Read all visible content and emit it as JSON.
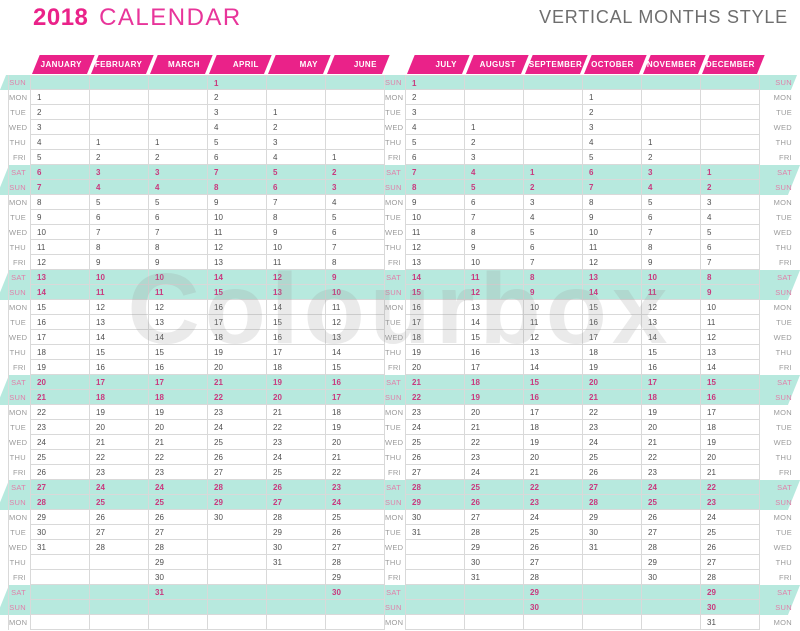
{
  "header": {
    "year": "2018",
    "title": "CALENDAR",
    "subtitle": "VERTICAL MONTHS STYLE"
  },
  "watermark_text": "Colourbox",
  "colors": {
    "accent_pink": "#EA2289",
    "weekend_highlight": "#B7E9DE",
    "weekend_number": "#C9397E",
    "weekend_label": "#E07FA9",
    "grid_line": "#D9D9D9",
    "number_text": "#4E4E4E",
    "label_text": "#9B9B9B",
    "subtitle_text": "#6E6E6E"
  },
  "calendar": {
    "row_labels": [
      "SUN",
      "MON",
      "TUE",
      "WED",
      "THU",
      "FRI",
      "SAT",
      "SUN",
      "MON",
      "TUE",
      "WED",
      "THU",
      "FRI",
      "SAT",
      "SUN",
      "MON",
      "TUE",
      "WED",
      "THU",
      "FRI",
      "SAT",
      "SUN",
      "MON",
      "TUE",
      "WED",
      "THU",
      "FRI",
      "SAT",
      "SUN",
      "MON",
      "TUE",
      "WED",
      "THU",
      "FRI",
      "SAT",
      "SUN",
      "MON"
    ],
    "weekend_rows": [
      1,
      7,
      8,
      14,
      15,
      21,
      22,
      28,
      29,
      35,
      36
    ],
    "bands": [
      [
        1,
        1
      ],
      [
        7,
        2
      ],
      [
        14,
        2
      ],
      [
        21,
        2
      ],
      [
        28,
        2
      ],
      [
        35,
        2
      ]
    ],
    "months": [
      {
        "name": "JANUARY",
        "cells": [
          "",
          1,
          2,
          3,
          4,
          5,
          6,
          7,
          8,
          9,
          10,
          11,
          12,
          13,
          14,
          15,
          16,
          17,
          18,
          19,
          20,
          21,
          22,
          23,
          24,
          25,
          26,
          27,
          28,
          29,
          30,
          31,
          "",
          "",
          "",
          "",
          ""
        ]
      },
      {
        "name": "FEBRUARY",
        "cells": [
          "",
          "",
          "",
          "",
          1,
          2,
          3,
          4,
          5,
          6,
          7,
          8,
          9,
          10,
          11,
          12,
          13,
          14,
          15,
          16,
          17,
          18,
          19,
          20,
          21,
          22,
          23,
          24,
          25,
          26,
          27,
          28,
          "",
          "",
          "",
          "",
          ""
        ]
      },
      {
        "name": "MARCH",
        "cells": [
          "",
          "",
          "",
          "",
          1,
          2,
          3,
          4,
          5,
          6,
          7,
          8,
          9,
          10,
          11,
          12,
          13,
          14,
          15,
          16,
          17,
          18,
          19,
          20,
          21,
          22,
          23,
          24,
          25,
          26,
          27,
          28,
          29,
          30,
          31,
          "",
          ""
        ]
      },
      {
        "name": "APRIL",
        "cells": [
          1,
          2,
          3,
          4,
          5,
          6,
          7,
          8,
          9,
          10,
          11,
          12,
          13,
          14,
          15,
          16,
          17,
          18,
          19,
          20,
          21,
          22,
          23,
          24,
          25,
          26,
          27,
          28,
          29,
          30,
          "",
          "",
          "",
          "",
          "",
          "",
          ""
        ]
      },
      {
        "name": "MAY",
        "cells": [
          "",
          "",
          1,
          2,
          3,
          4,
          5,
          6,
          7,
          8,
          9,
          10,
          11,
          12,
          13,
          14,
          15,
          16,
          17,
          18,
          19,
          20,
          21,
          22,
          23,
          24,
          25,
          26,
          27,
          28,
          29,
          30,
          31,
          "",
          "",
          "",
          ""
        ]
      },
      {
        "name": "JUNE",
        "cells": [
          "",
          "",
          "",
          "",
          "",
          1,
          2,
          3,
          4,
          5,
          6,
          7,
          8,
          9,
          10,
          11,
          12,
          13,
          14,
          15,
          16,
          17,
          18,
          19,
          20,
          21,
          22,
          23,
          24,
          25,
          26,
          27,
          28,
          29,
          30,
          "",
          ""
        ]
      },
      {
        "name": "JULY",
        "cells": [
          1,
          2,
          3,
          4,
          5,
          6,
          7,
          8,
          9,
          10,
          11,
          12,
          13,
          14,
          15,
          16,
          17,
          18,
          19,
          20,
          21,
          22,
          23,
          24,
          25,
          26,
          27,
          28,
          29,
          30,
          31,
          "",
          "",
          "",
          "",
          "",
          ""
        ]
      },
      {
        "name": "AUGUST",
        "cells": [
          "",
          "",
          "",
          1,
          2,
          3,
          4,
          5,
          6,
          7,
          8,
          9,
          10,
          11,
          12,
          13,
          14,
          15,
          16,
          17,
          18,
          19,
          20,
          21,
          22,
          23,
          24,
          25,
          26,
          27,
          28,
          29,
          30,
          31,
          "",
          "",
          ""
        ]
      },
      {
        "name": "SEPTEMBER",
        "cells": [
          "",
          "",
          "",
          "",
          "",
          "",
          1,
          2,
          3,
          4,
          5,
          6,
          7,
          8,
          9,
          10,
          11,
          12,
          13,
          14,
          15,
          16,
          17,
          18,
          19,
          20,
          21,
          22,
          23,
          24,
          25,
          26,
          27,
          28,
          29,
          30,
          ""
        ]
      },
      {
        "name": "OCTOBER",
        "cells": [
          "",
          1,
          2,
          3,
          4,
          5,
          6,
          7,
          8,
          9,
          10,
          11,
          12,
          13,
          14,
          15,
          16,
          17,
          18,
          19,
          20,
          21,
          22,
          23,
          24,
          25,
          26,
          27,
          28,
          29,
          30,
          31,
          "",
          "",
          "",
          "",
          ""
        ]
      },
      {
        "name": "NOVEMBER",
        "cells": [
          "",
          "",
          "",
          "",
          1,
          2,
          3,
          4,
          5,
          6,
          7,
          8,
          9,
          10,
          11,
          12,
          13,
          14,
          15,
          16,
          17,
          18,
          19,
          20,
          21,
          22,
          23,
          24,
          25,
          26,
          27,
          28,
          29,
          30,
          "",
          "",
          ""
        ]
      },
      {
        "name": "DECEMBER",
        "cells": [
          "",
          "",
          "",
          "",
          "",
          "",
          1,
          2,
          3,
          4,
          5,
          6,
          7,
          8,
          9,
          10,
          11,
          12,
          13,
          14,
          15,
          16,
          17,
          18,
          19,
          20,
          21,
          22,
          23,
          24,
          25,
          26,
          27,
          28,
          29,
          30,
          31
        ]
      }
    ]
  }
}
